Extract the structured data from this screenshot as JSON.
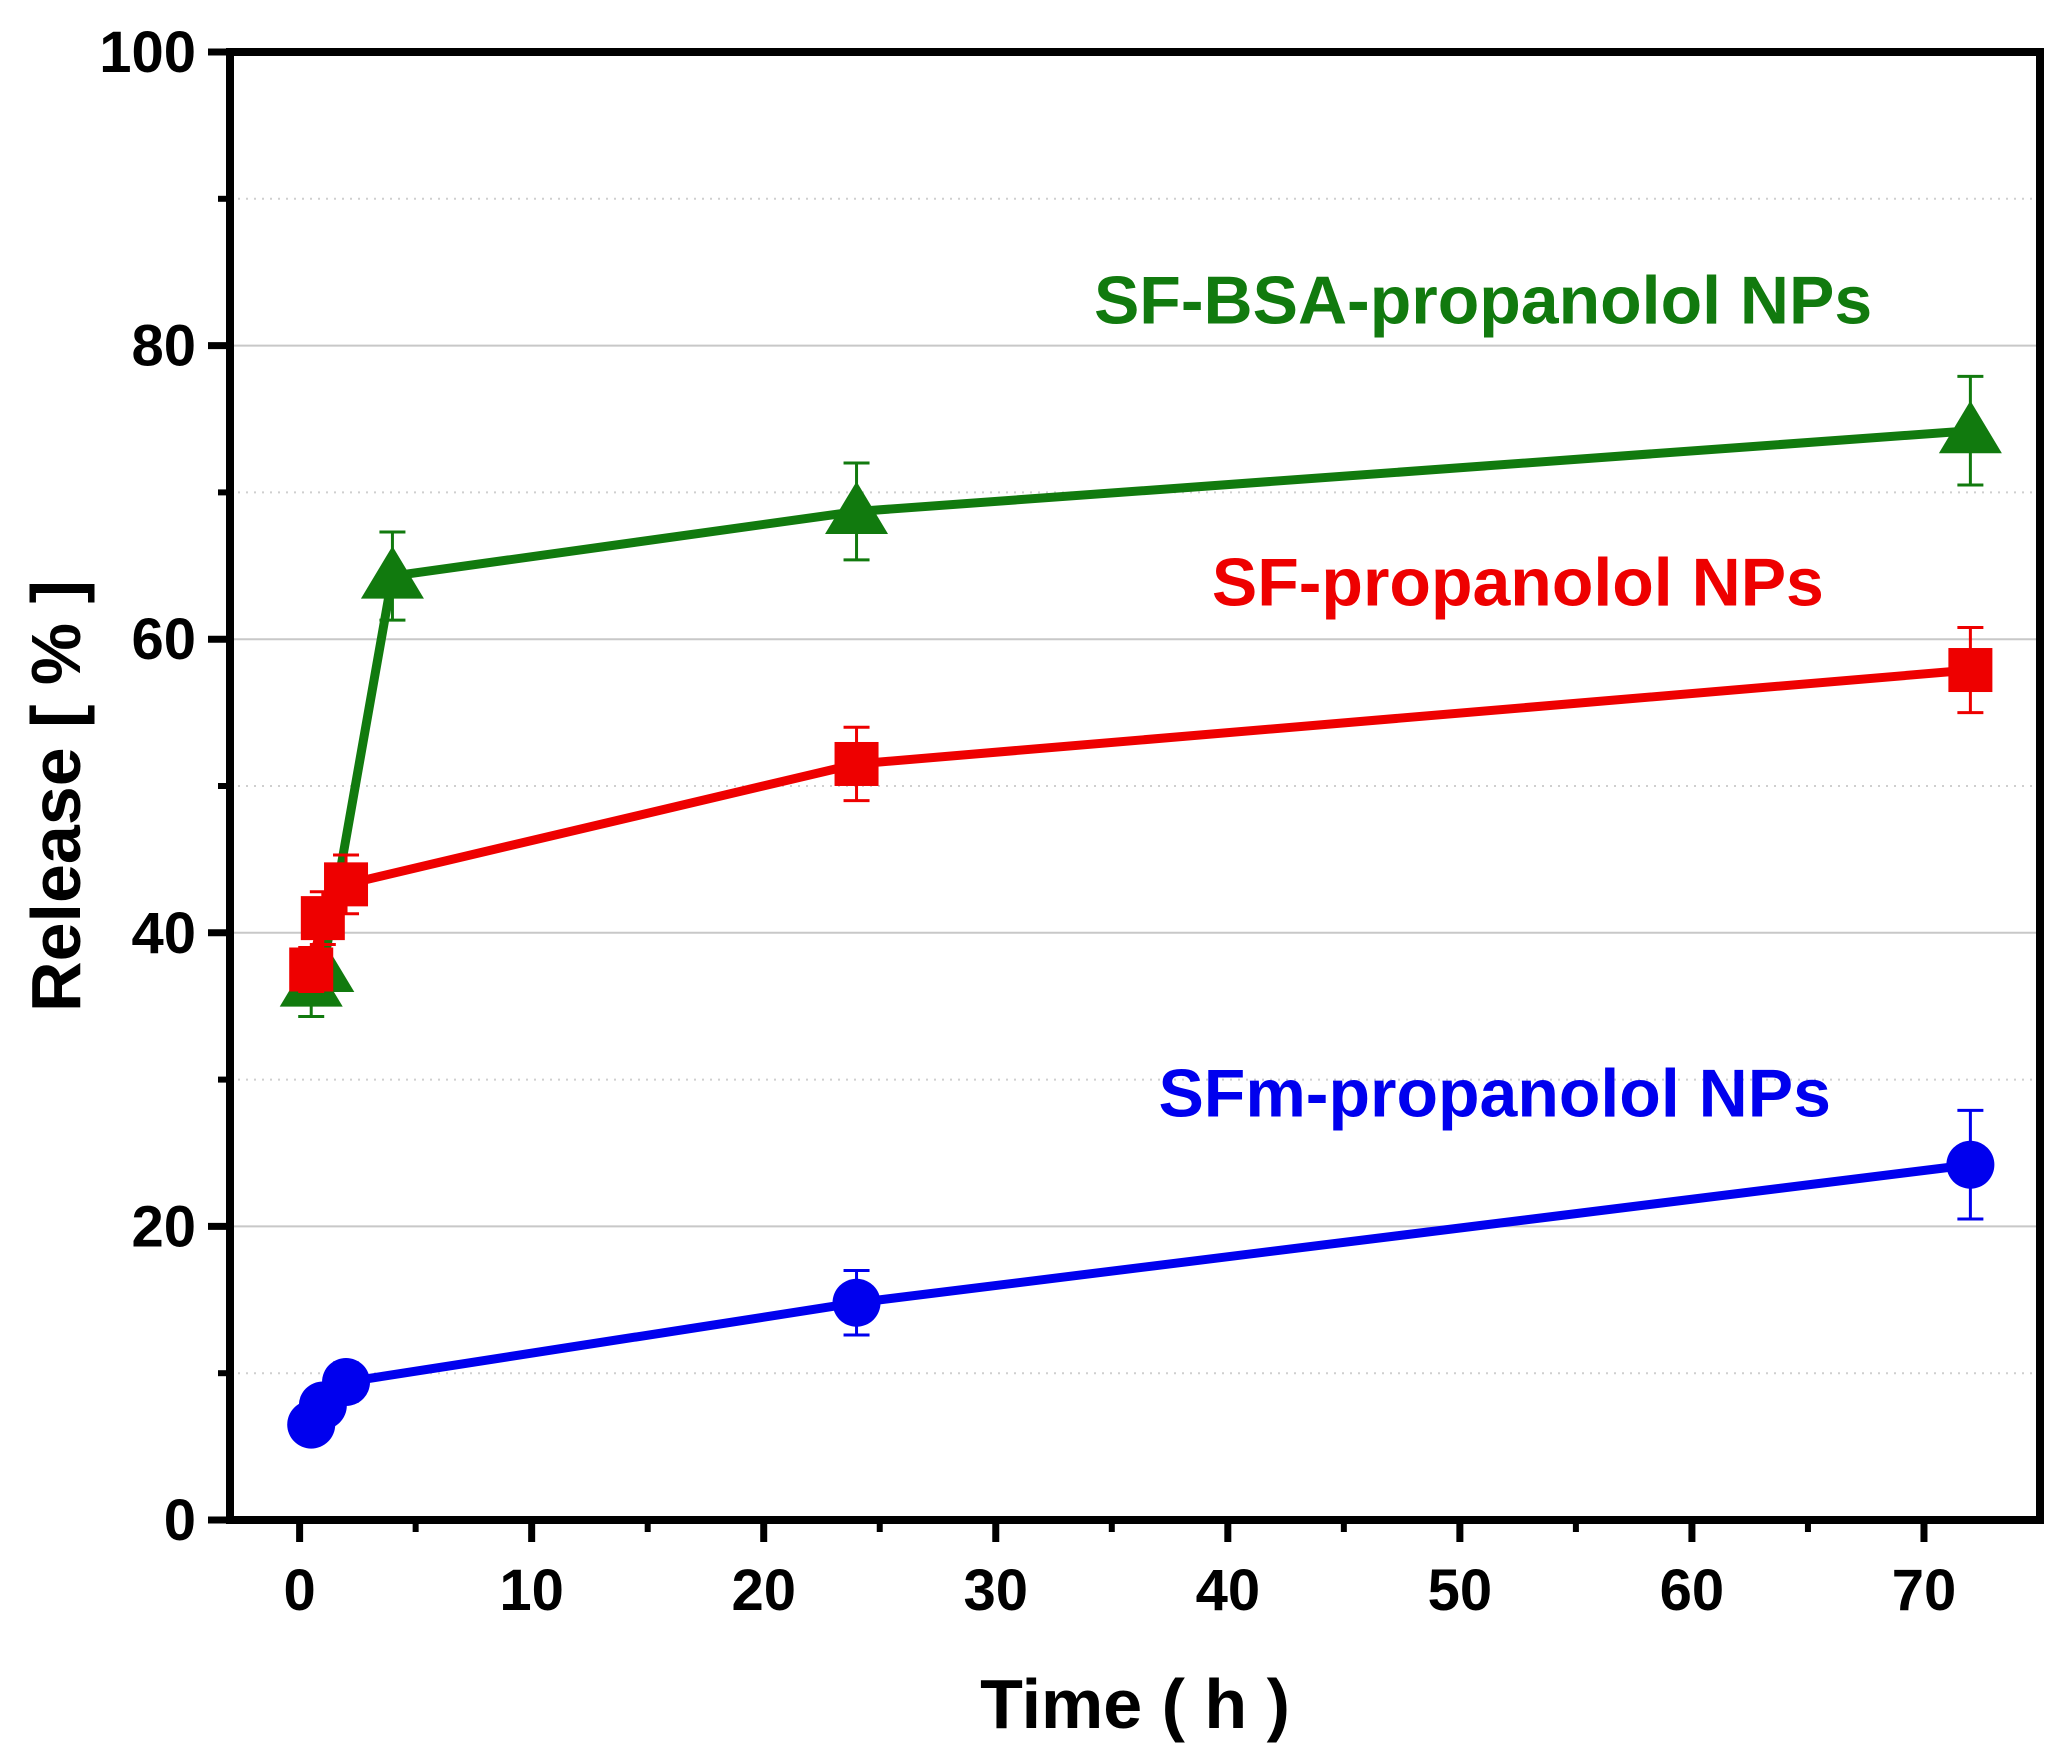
{
  "chart_data": {
    "type": "line",
    "title": "",
    "xlabel": "Time ( h )",
    "ylabel": "Release  [ % ]",
    "xlim": [
      -3,
      75
    ],
    "ylim": [
      0,
      100
    ],
    "x_ticks": [
      0,
      10,
      20,
      30,
      40,
      50,
      60,
      70
    ],
    "y_ticks": [
      0,
      20,
      40,
      60,
      80,
      100
    ],
    "x_tick_labels": [
      "0",
      "10",
      "20",
      "30",
      "40",
      "50",
      "60",
      "70"
    ],
    "y_tick_labels": [
      "0",
      "20",
      "40",
      "60",
      "80",
      "100"
    ],
    "grid": "horizontal",
    "series": [
      {
        "name": "SF-BSA-propanolol NPs",
        "color": "#117a0e",
        "marker": "triangle",
        "x": [
          0.5,
          1,
          4,
          24,
          72
        ],
        "values": [
          36.5,
          37.5,
          64.3,
          68.7,
          74.2
        ],
        "errors": [
          2.2,
          2.4,
          3.0,
          3.3,
          3.7
        ]
      },
      {
        "name": "SF-propanolol NPs",
        "color": "#ee0000",
        "marker": "square",
        "x": [
          0.5,
          1,
          2,
          24,
          72
        ],
        "values": [
          37.5,
          41.0,
          43.3,
          51.5,
          57.9
        ],
        "errors": [
          1.5,
          1.8,
          2.0,
          2.5,
          2.9
        ]
      },
      {
        "name": "SFm-propanolol NPs",
        "color": "#0000ee",
        "marker": "circle",
        "x": [
          0.5,
          1,
          2,
          24,
          72
        ],
        "values": [
          6.5,
          7.8,
          9.4,
          14.8,
          24.2
        ],
        "errors": [
          0.8,
          1.0,
          1.3,
          2.2,
          3.7
        ]
      }
    ],
    "annotations": [
      {
        "text": "SF-BSA-propanolol NPs",
        "color": "#117a0e",
        "x": 51,
        "y": 81.5
      },
      {
        "text": "SF-propanolol NPs",
        "color": "#ee0000",
        "x": 52.5,
        "y": 62.3
      },
      {
        "text": "SFm-propanolol NPs",
        "color": "#0000ee",
        "x": 51.5,
        "y": 27.5
      }
    ]
  }
}
